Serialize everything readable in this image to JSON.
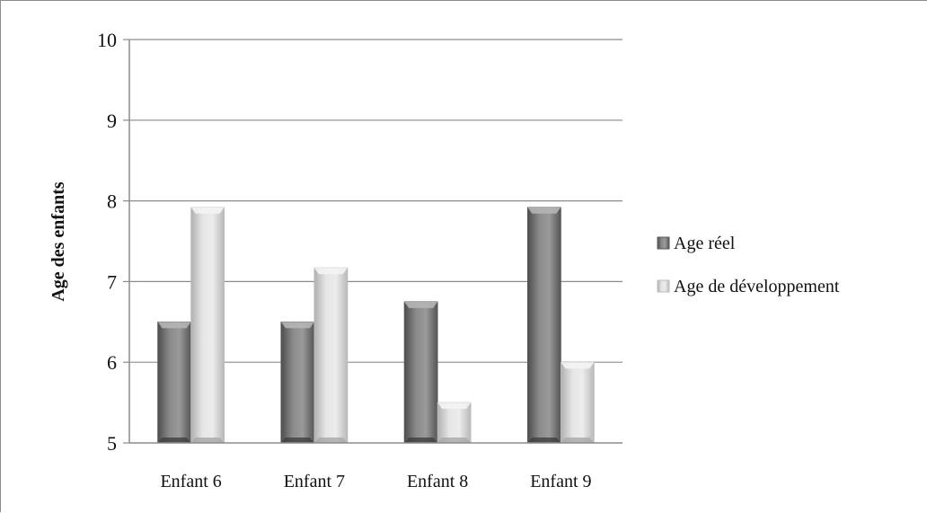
{
  "chart_data": {
    "type": "bar",
    "title": "",
    "xlabel": "",
    "ylabel": "Age des enfants",
    "categories": [
      "Enfant 6",
      "Enfant 7",
      "Enfant 8",
      "Enfant 9"
    ],
    "series": [
      {
        "name": "Age réel",
        "values": [
          6.5,
          6.5,
          6.75,
          7.92
        ],
        "color": "#6e6e6e"
      },
      {
        "name": "Age de développement",
        "values": [
          7.92,
          7.17,
          5.5,
          6.0
        ],
        "color": "#c8c8c8"
      }
    ],
    "ylim": [
      5,
      10
    ],
    "yticks": [
      "5",
      "6",
      "7",
      "8",
      "9",
      "10"
    ],
    "grid": true,
    "legend_position": "right"
  }
}
